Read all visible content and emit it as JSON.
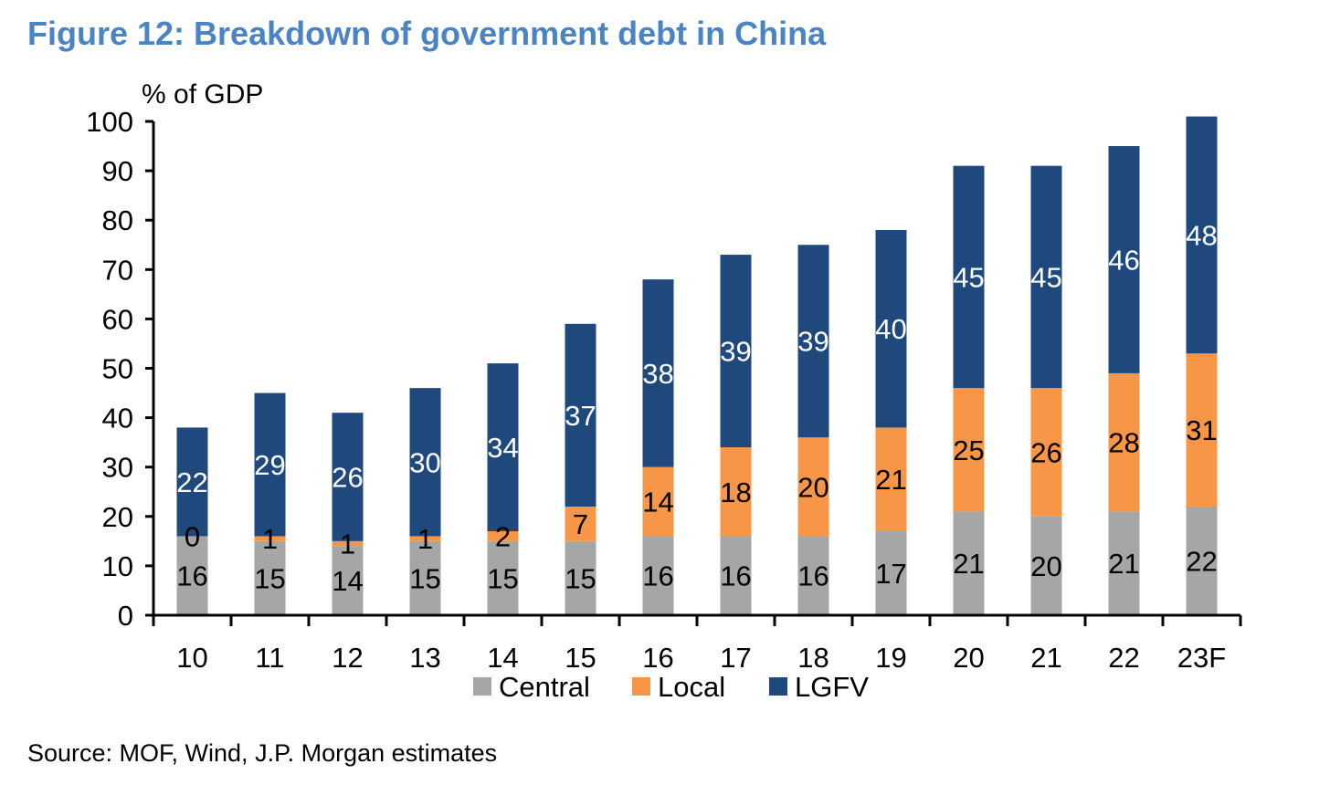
{
  "title": "Figure 12: Breakdown of government debt in China",
  "source": "Source: MOF, Wind, J.P. Morgan estimates",
  "chart_data": {
    "type": "bar",
    "stacked": true,
    "title": "Figure 12: Breakdown of government debt in China",
    "ylabel": "% of GDP",
    "xlabel": "",
    "ylim": [
      0,
      100
    ],
    "yticks": [
      0,
      10,
      20,
      30,
      40,
      50,
      60,
      70,
      80,
      90,
      100
    ],
    "categories": [
      "10",
      "11",
      "12",
      "13",
      "14",
      "15",
      "16",
      "17",
      "18",
      "19",
      "20",
      "21",
      "22",
      "23F"
    ],
    "series": [
      {
        "name": "Central",
        "color": "#a6a6a6",
        "label_color": "#000000",
        "values": [
          16,
          15,
          14,
          15,
          15,
          15,
          16,
          16,
          16,
          17,
          21,
          20,
          21,
          22
        ]
      },
      {
        "name": "Local",
        "color": "#f79646",
        "label_color": "#000000",
        "values": [
          0,
          1,
          1,
          1,
          2,
          7,
          14,
          18,
          20,
          21,
          25,
          26,
          28,
          31
        ]
      },
      {
        "name": "LGFV",
        "color": "#1f497d",
        "label_color": "#ffffff",
        "values": [
          22,
          29,
          26,
          30,
          34,
          37,
          38,
          39,
          39,
          40,
          45,
          45,
          46,
          48
        ]
      }
    ],
    "legend_position": "bottom",
    "grid": false
  }
}
